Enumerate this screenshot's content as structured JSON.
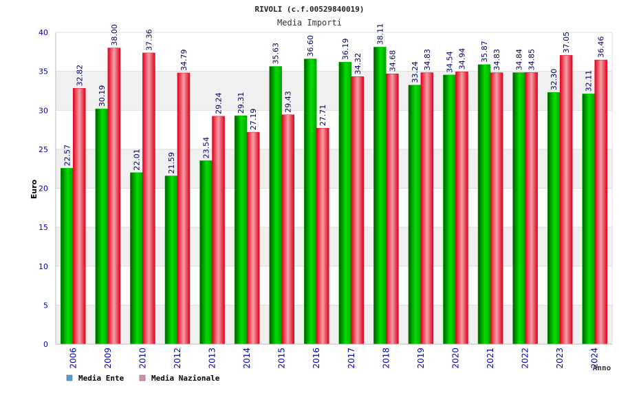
{
  "header": {
    "title": "RIVOLI (c.f.00529840019)"
  },
  "chart_data": {
    "type": "bar",
    "title": "Media Importi",
    "xlabel": "Anno",
    "ylabel": "Euro",
    "ylim": [
      0,
      40
    ],
    "yticks": [
      0,
      5,
      10,
      15,
      20,
      25,
      30,
      35,
      40
    ],
    "categories": [
      "2006",
      "2009",
      "2010",
      "2012",
      "2013",
      "2014",
      "2015",
      "2016",
      "2017",
      "2018",
      "2019",
      "2020",
      "2021",
      "2022",
      "2023",
      "2024"
    ],
    "series": [
      {
        "name": "Media Ente",
        "color": "#00c000",
        "legend_color": "#5b9bd5",
        "values": [
          22.57,
          30.19,
          22.01,
          21.59,
          23.54,
          29.31,
          35.63,
          36.6,
          36.19,
          38.11,
          33.24,
          34.54,
          35.87,
          34.84,
          32.3,
          32.11
        ],
        "labels": [
          "22.57",
          "30.19",
          "22.01",
          "21.59",
          "23.54",
          "29.31",
          "35.63",
          "36.60",
          "36.19",
          "38.11",
          "33.24",
          "34.54",
          "35.87",
          "34.84",
          "32.30",
          "32.11"
        ]
      },
      {
        "name": "Media Nazionale",
        "color": "#e0001c",
        "legend_color": "#d98cb3",
        "values": [
          32.82,
          38.0,
          37.36,
          34.79,
          29.24,
          27.19,
          29.43,
          27.71,
          34.32,
          34.68,
          34.83,
          34.94,
          34.83,
          34.85,
          37.05,
          36.46
        ],
        "labels": [
          "32.82",
          "38.00",
          "37.36",
          "34.79",
          "29.24",
          "27.19",
          "29.43",
          "27.71",
          "34.32",
          "34.68",
          "34.83",
          "34.94",
          "34.83",
          "34.85",
          "37.05",
          "36.46"
        ]
      }
    ],
    "grid": true,
    "legend_position": "bottom-left",
    "colors": {
      "band_light": "#ffffff",
      "band_dark": "#f0f0f0",
      "axis_text": "#0000aa",
      "label_text": "#000066"
    }
  }
}
